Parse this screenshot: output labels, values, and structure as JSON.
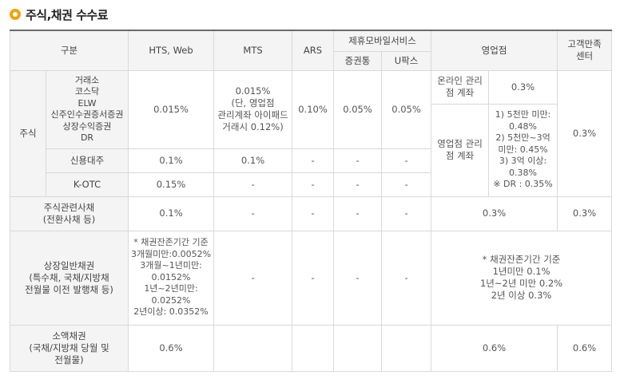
{
  "title": "주식,채권 수수료",
  "headers": {
    "category": "구분",
    "hts": "HTS, Web",
    "mts": "MTS",
    "ars": "ARS",
    "partner_mobile": "제휴모바일서비스",
    "partner_a": "증권통",
    "partner_b": "U팍스",
    "branch": "영업점",
    "callcenter": "고객만족\n센터"
  },
  "stock": {
    "label": "주식",
    "markets": "거래소\n코스닥\nELW\n신주인수권증서증권\n상장수익증권\nDR",
    "hts": "0.015%",
    "mts": "0.015%\n(단, 영업점 관리계좌 아이패드 거래시 0.12%)",
    "ars": "0.10%",
    "partner_a": "0.05%",
    "partner_b": "0.05%",
    "online_account_label": "온라인 관리\n점 계좌",
    "online_account_fee": "0.3%",
    "branch_account_label": "영업점 관리\n점 계좌",
    "branch_account_fee": "1) 5천만 미만: 0.48%\n2) 5천만~3억 미만: 0.45%\n3) 3억 이상: 0.38%\n※ DR : 0.35%",
    "callcenter": "0.3%",
    "margin_label": "신용대주",
    "margin_hts": "0.1%",
    "margin_mts": "0.1%",
    "margin_ars": "-",
    "margin_partner_a": "-",
    "margin_partner_b": "-",
    "kotc_label": "K-OTC",
    "kotc_hts": "0.15%",
    "kotc_mts": "-",
    "kotc_ars": "-",
    "kotc_partner_a": "-",
    "kotc_partner_b": "-"
  },
  "stock_bond": {
    "label": "주식관련사채\n(전환사채 등)",
    "hts": "0.1%",
    "mts": "-",
    "ars": "-",
    "partner_a": "-",
    "partner_b": "-",
    "branch": "0.3%",
    "callcenter": "0.3%"
  },
  "general_bond": {
    "label": "상장일반채권\n(특수채, 국채/지방채\n전월물 이전 발행채 등)",
    "hts": "* 채권잔존기간 기준\n3개월미만:0.0052%\n3개월~1년미만:\n0.0152%\n1년~2년미만:\n0.0252%\n2년이상: 0.0352%",
    "mts": "-",
    "ars": "-",
    "partner_a": "-",
    "partner_b": "-",
    "branch": "* 채권잔존기간 기준\n1년미만 0.1%\n1년~2년 미만 0.2%\n2년 이상 0.3%"
  },
  "small_bond": {
    "label": "소액채권\n(국채/지방채 당월 및\n전월물)",
    "hts": "0.6%",
    "mts": "",
    "ars": "",
    "partner_a": "",
    "partner_b": "",
    "branch": "0.6%",
    "callcenter": "0.6%"
  }
}
